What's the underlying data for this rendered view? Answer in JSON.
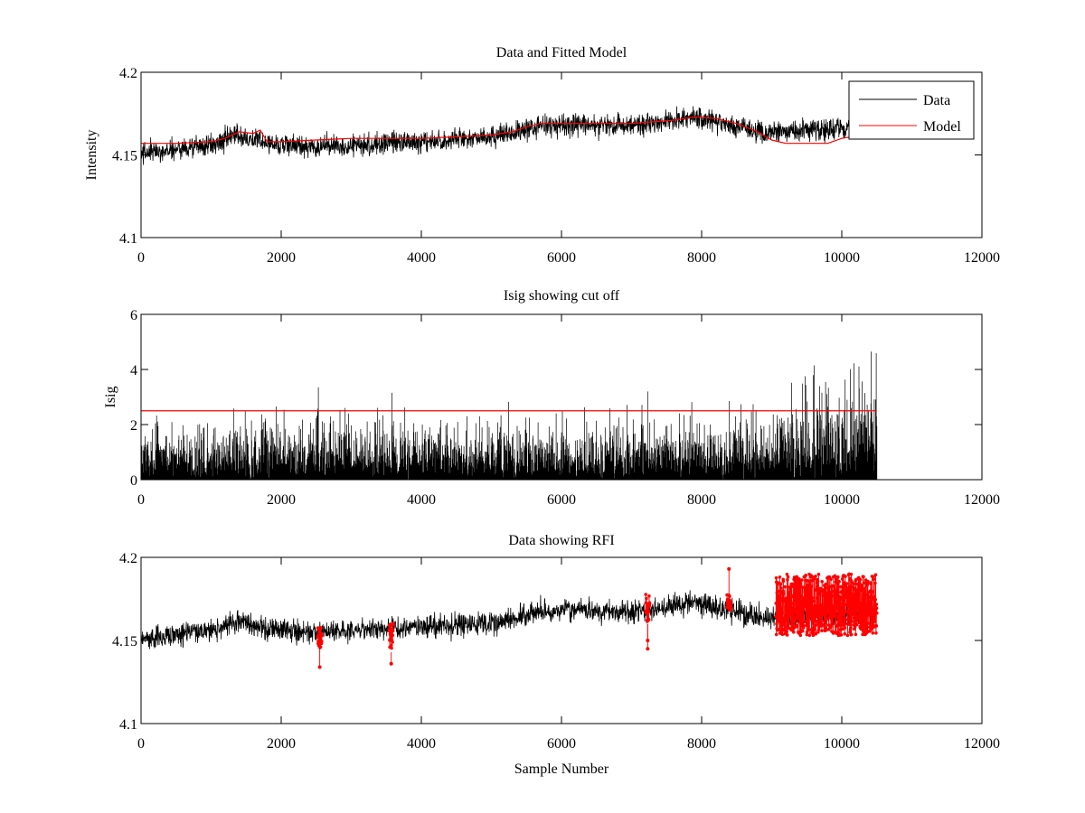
{
  "colors": {
    "data": "#000000",
    "model": "#ff0000",
    "cutoff": "#ff0000",
    "rfi": "#ff0000",
    "axes": "#000000",
    "background": "#ffffff"
  },
  "chart_data": [
    {
      "type": "line",
      "title": "Data and Fitted Model",
      "xlabel": "",
      "ylabel": "Intensity",
      "xlim": [
        0,
        12000
      ],
      "ylim": [
        4.1,
        4.2
      ],
      "xticks": [
        "0",
        "2000",
        "4000",
        "6000",
        "8000",
        "10000",
        "12000"
      ],
      "yticks": [
        "4.1",
        "4.15",
        "4.2"
      ],
      "legend": {
        "placement": "top-right",
        "entries": [
          "Data",
          "Model"
        ]
      },
      "grid": false,
      "series": [
        {
          "name": "Data",
          "kind": "noisy-line",
          "x_range": [
            0,
            10500
          ],
          "center": {
            "x": [
              0,
              1000,
              1400,
              1800,
              2500,
              3500,
              4500,
              5200,
              5700,
              6500,
              7200,
              7900,
              8500,
              9000,
              9500,
              10000,
              10500
            ],
            "y": [
              4.151,
              4.156,
              4.162,
              4.157,
              4.155,
              4.157,
              4.159,
              4.162,
              4.168,
              4.168,
              4.168,
              4.173,
              4.167,
              4.163,
              4.165,
              4.166,
              4.168
            ]
          },
          "spread": 0.009
        },
        {
          "name": "Model",
          "kind": "line",
          "x": [
            0,
            500,
            1000,
            1200,
            1400,
            1600,
            1700,
            1800,
            2000,
            2500,
            3000,
            3500,
            4000,
            4500,
            5000,
            5300,
            5500,
            5700,
            6000,
            6500,
            7000,
            7300,
            7600,
            7900,
            8200,
            8500,
            8800,
            9000,
            9200,
            9500,
            9800,
            10000,
            10300,
            10500
          ],
          "y": [
            4.157,
            4.157,
            4.158,
            4.16,
            4.164,
            4.163,
            4.165,
            4.158,
            4.158,
            4.159,
            4.16,
            4.16,
            4.16,
            4.161,
            4.162,
            4.164,
            4.167,
            4.169,
            4.169,
            4.169,
            4.169,
            4.17,
            4.171,
            4.173,
            4.172,
            4.169,
            4.164,
            4.159,
            4.157,
            4.157,
            4.157,
            4.16,
            4.162,
            4.163
          ]
        }
      ]
    },
    {
      "type": "line",
      "title": "Isig showing cut off",
      "xlabel": "",
      "ylabel": "Isig",
      "xlim": [
        0,
        12000
      ],
      "ylim": [
        0,
        6
      ],
      "xticks": [
        "0",
        "2000",
        "4000",
        "6000",
        "8000",
        "10000",
        "12000"
      ],
      "yticks": [
        "0",
        "2",
        "4",
        "6"
      ],
      "grid": false,
      "series": [
        {
          "kind": "noisy-bars",
          "x_range": [
            0,
            10500
          ],
          "envelope": {
            "x": [
              0,
              2000,
              4000,
              6000,
              8000,
              9000,
              9500,
              10000,
              10500
            ],
            "y": [
              2.2,
              2.4,
              2.4,
              2.2,
              2.4,
              2.8,
              3.3,
              3.9,
              4.2
            ]
          },
          "spikes": [
            {
              "x": 2530,
              "y": 3.35
            },
            {
              "x": 3580,
              "y": 3.15
            },
            {
              "x": 7230,
              "y": 3.2
            },
            {
              "x": 10420,
              "y": 4.65
            }
          ]
        },
        {
          "kind": "cutoff-line",
          "x": [
            0,
            10500
          ],
          "y": [
            2.5,
            2.5
          ]
        }
      ]
    },
    {
      "type": "line",
      "title": "Data showing RFI",
      "xlabel": "Sample Number",
      "ylabel": "",
      "xlim": [
        0,
        12000
      ],
      "ylim": [
        4.1,
        4.2
      ],
      "xticks": [
        "0",
        "2000",
        "4000",
        "6000",
        "8000",
        "10000",
        "12000"
      ],
      "yticks": [
        "4.1",
        "4.15",
        "4.2"
      ],
      "grid": false,
      "series": [
        {
          "kind": "noisy-line",
          "x_range": [
            0,
            10500
          ],
          "center": {
            "x": [
              0,
              1000,
              1400,
              1800,
              2500,
              3500,
              4500,
              5200,
              5700,
              6500,
              7200,
              7900,
              8500,
              9000,
              9500,
              10000,
              10500
            ],
            "y": [
              4.151,
              4.156,
              4.162,
              4.157,
              4.155,
              4.157,
              4.159,
              4.162,
              4.168,
              4.168,
              4.168,
              4.173,
              4.167,
              4.163,
              4.165,
              4.166,
              4.168
            ]
          },
          "spread": 0.009
        },
        {
          "kind": "rfi-markers",
          "clusters": [
            {
              "x_range": [
                2520,
                2580
              ],
              "y_range": [
                4.145,
                4.158
              ],
              "outliers": [
                4.134
              ]
            },
            {
              "x_range": [
                3540,
                3600
              ],
              "y_range": [
                4.143,
                4.162
              ],
              "outliers": [
                4.136
              ]
            },
            {
              "x_range": [
                7200,
                7260
              ],
              "y_range": [
                4.16,
                4.178
              ],
              "outliers": [
                4.145,
                4.15
              ]
            },
            {
              "x_range": [
                8360,
                8420
              ],
              "y_range": [
                4.168,
                4.178
              ],
              "outliers": [
                4.193
              ]
            },
            {
              "x_range": [
                9060,
                10500
              ],
              "y_range": [
                4.153,
                4.19
              ],
              "outliers": []
            }
          ]
        }
      ]
    }
  ]
}
